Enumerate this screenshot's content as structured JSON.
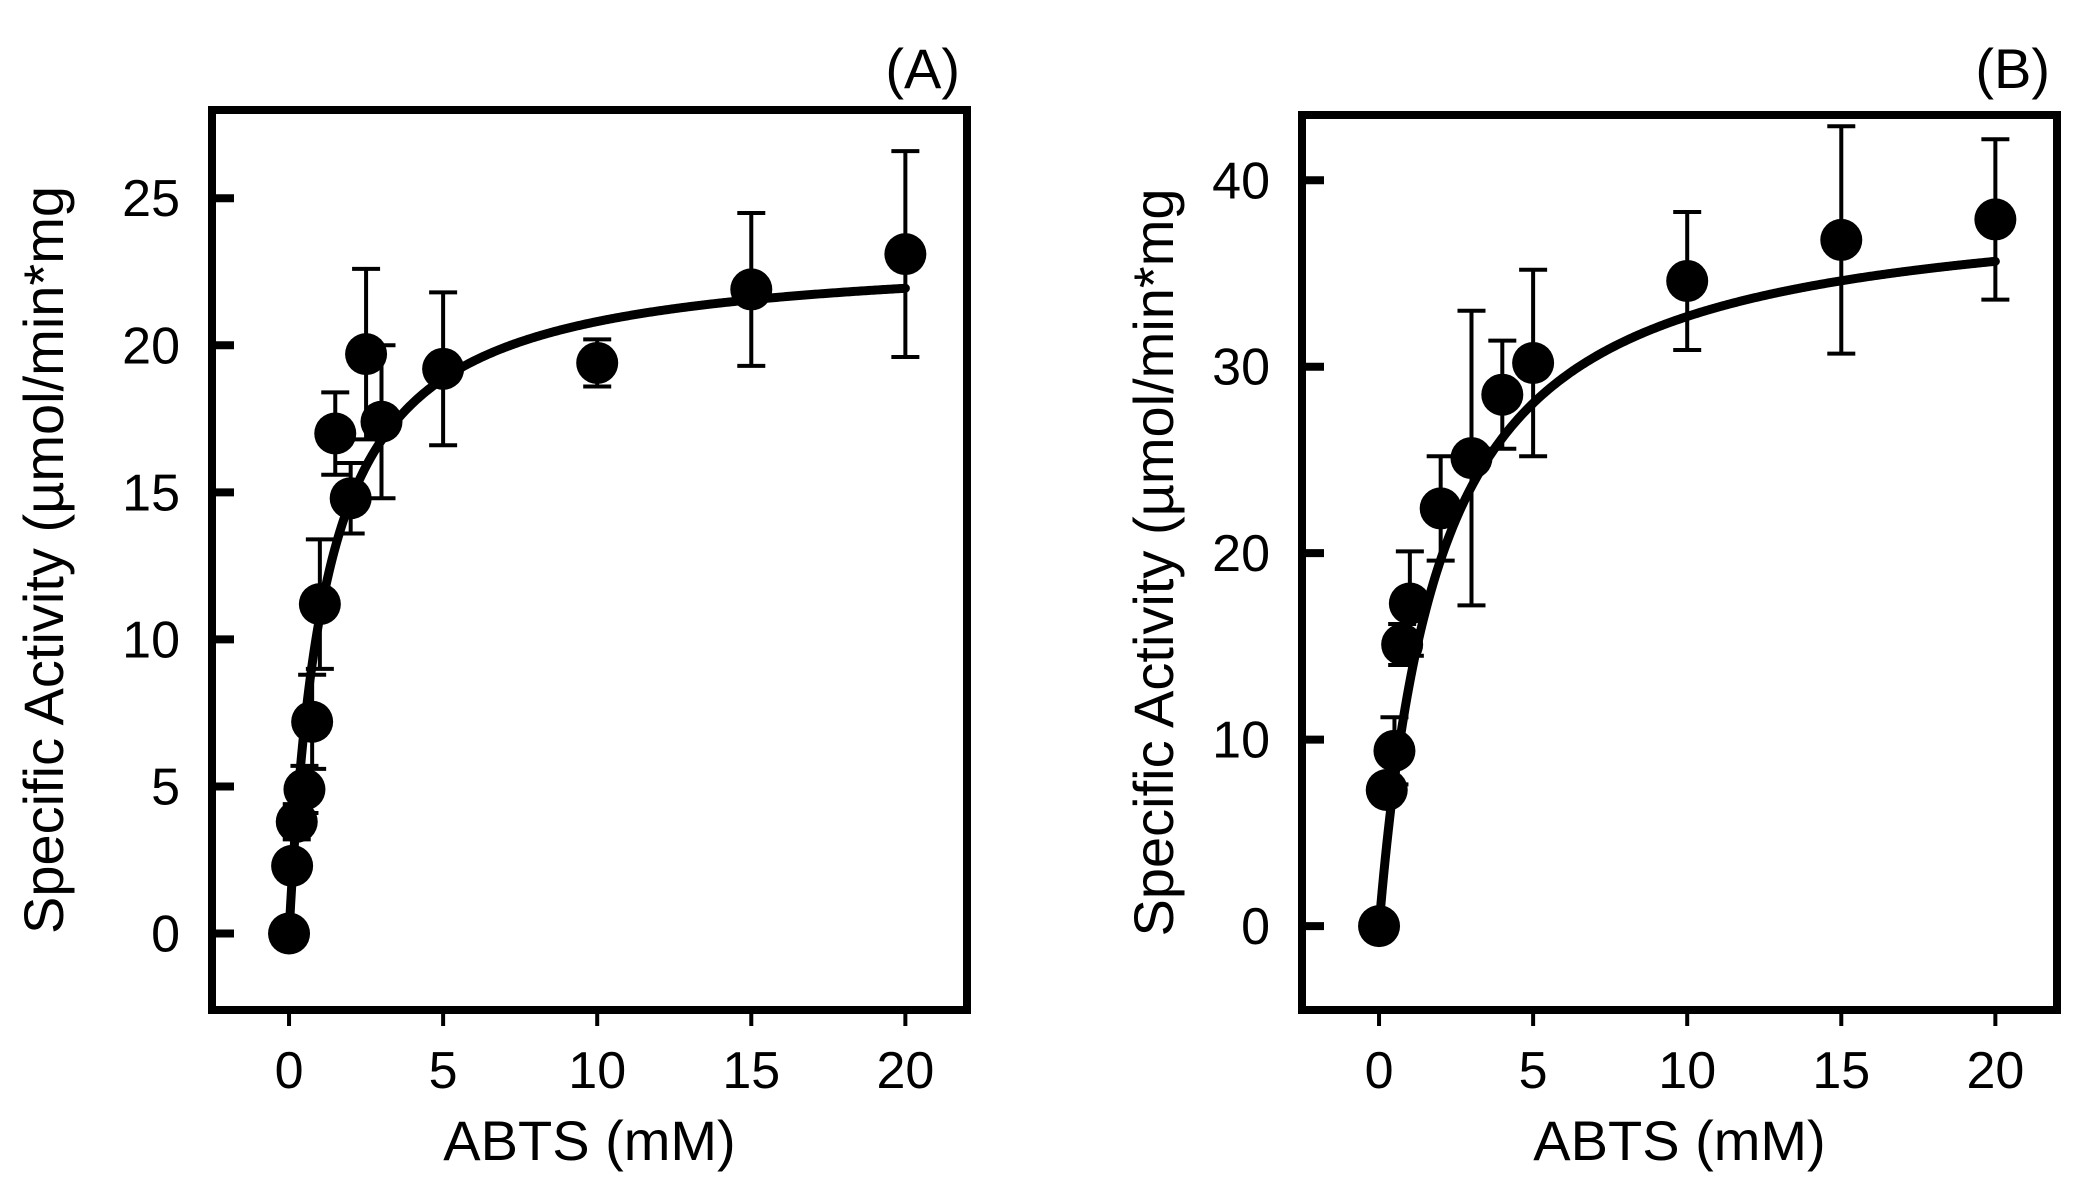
{
  "colors": {
    "ink": "#000000",
    "background": "#ffffff"
  },
  "chart_data": [
    {
      "type": "scatter",
      "panel_label": "(A)",
      "xlabel": "ABTS (mM)",
      "ylabel": "Specific Activity (µmol/min*mg",
      "xlim": [
        -2.5,
        22
      ],
      "ylim": [
        -2.6,
        28
      ],
      "xticks": [
        0,
        5,
        10,
        15,
        20
      ],
      "yticks": [
        0,
        5,
        10,
        15,
        20,
        25
      ],
      "xtick_labels": [
        "0",
        "5",
        "10",
        "15",
        "20"
      ],
      "ytick_labels": [
        "0",
        "5",
        "10",
        "15",
        "20",
        "25"
      ],
      "series": [
        {
          "name": "measured",
          "x": [
            0,
            0.1,
            0.25,
            0.5,
            0.75,
            1.0,
            1.5,
            2.0,
            2.5,
            3.0,
            5.0,
            10.0,
            15.0,
            20.0
          ],
          "y": [
            0,
            2.3,
            3.8,
            4.9,
            7.2,
            11.2,
            17.0,
            14.8,
            19.7,
            17.4,
            19.2,
            19.4,
            21.9,
            23.1
          ],
          "err": [
            0.3,
            0.4,
            0.6,
            0.8,
            1.6,
            2.2,
            1.4,
            1.2,
            2.9,
            2.6,
            2.6,
            0.8,
            2.6,
            3.5
          ]
        }
      ],
      "fit": {
        "model": "Michaelis-Menten",
        "Vmax": 23.2,
        "Km": 1.15,
        "x_range": [
          0,
          20
        ]
      }
    },
    {
      "type": "scatter",
      "panel_label": "(B)",
      "xlabel": "ABTS (mM)",
      "ylabel": "Specific Activity (µmol/min*mg",
      "xlim": [
        -2.5,
        22
      ],
      "ylim": [
        -4.5,
        43.5
      ],
      "xticks": [
        0,
        5,
        10,
        15,
        20
      ],
      "yticks": [
        0,
        10,
        20,
        30,
        40
      ],
      "xtick_labels": [
        "0",
        "5",
        "10",
        "15",
        "20"
      ],
      "ytick_labels": [
        "0",
        "10",
        "20",
        "30",
        "40"
      ],
      "series": [
        {
          "name": "measured",
          "x": [
            0,
            0.25,
            0.5,
            0.75,
            1.0,
            2.0,
            3.0,
            4.0,
            5.0,
            10.0,
            15.0,
            20.0
          ],
          "y": [
            0,
            7.3,
            9.4,
            15.1,
            17.3,
            22.4,
            25.1,
            28.5,
            30.2,
            34.6,
            36.8,
            37.9
          ],
          "err": [
            0.3,
            0.5,
            1.8,
            1.1,
            2.8,
            2.8,
            7.9,
            2.9,
            5.0,
            3.7,
            6.1,
            4.3
          ]
        }
      ],
      "fit": {
        "model": "Michaelis-Menten",
        "Vmax": 39.2,
        "Km": 1.99,
        "x_range": [
          0,
          20
        ]
      }
    }
  ]
}
